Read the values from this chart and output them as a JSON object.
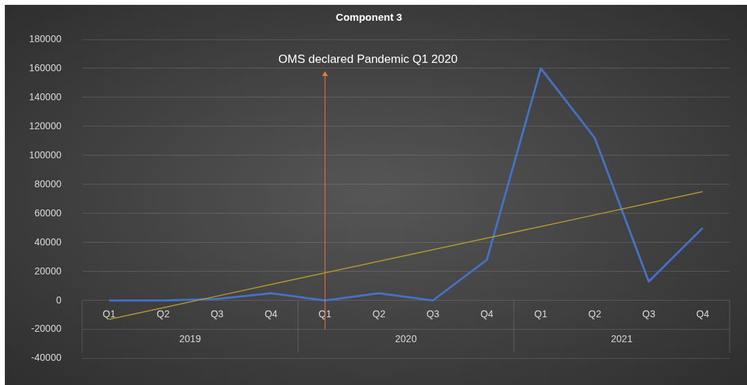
{
  "chart_data": {
    "type": "line",
    "title": "Component 3",
    "categories": [
      "Q1",
      "Q2",
      "Q3",
      "Q4",
      "Q1",
      "Q2",
      "Q3",
      "Q4",
      "Q1",
      "Q2",
      "Q3",
      "Q4"
    ],
    "series": [
      {
        "color": "#4472c4",
        "values": [
          0,
          0,
          1000,
          5000,
          0,
          5000,
          0,
          28000,
          160000,
          112000,
          13000,
          50000
        ]
      },
      {
        "type": "line",
        "color": "#b89b2e",
        "values": [
          -13000,
          -5000,
          3000,
          11000,
          19000,
          27000,
          35000,
          43000,
          51000,
          59000,
          67000,
          75000
        ]
      }
    ],
    "ylim": [
      -40000,
      180000
    ],
    "yticks": [
      -40000,
      -20000,
      0,
      20000,
      40000,
      60000,
      80000,
      100000,
      120000,
      140000,
      160000,
      180000
    ],
    "grid": "y",
    "annotations": [
      "OMS declared Pandemic Q1 2020",
      "2019",
      "2020",
      "2021"
    ]
  }
}
